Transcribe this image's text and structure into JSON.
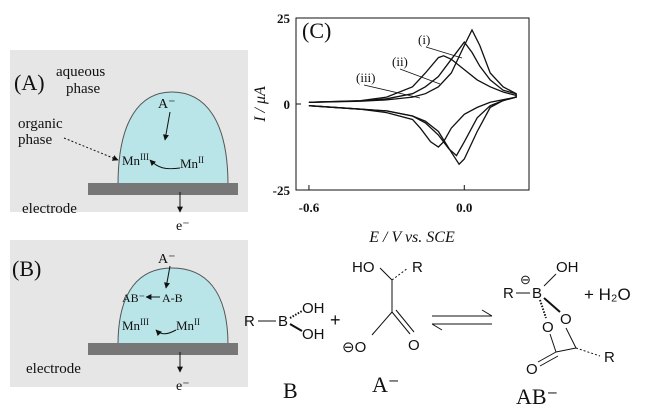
{
  "panel_a": {
    "label": "(A)",
    "aqueous": "aqueous",
    "aqueous_phase": "phase",
    "organic": "organic",
    "organic_phase": "phase",
    "anion": "A⁻",
    "mn_iii": {
      "text": "Mn",
      "sup": "III"
    },
    "mn_ii": {
      "text": "Mn",
      "sup": "II"
    },
    "electrode": "electrode",
    "electron": "e⁻"
  },
  "panel_b": {
    "label": "(B)",
    "anion": "A⁻",
    "complex": "AB⁻",
    "pair": "A-B",
    "mn_iii": {
      "text": "Mn",
      "sup": "III"
    },
    "mn_ii": {
      "text": "Mn",
      "sup": "II"
    },
    "electrode": "electrode",
    "electron": "e⁻"
  },
  "reaction": {
    "boronic": {
      "r": "R",
      "b": "B",
      "oh1": "OH",
      "oh2": "OH"
    },
    "plus": "+",
    "acid": {
      "ho": "HO",
      "r": "R",
      "o_minus": "⊖O",
      "o": "O"
    },
    "complex": {
      "oh": "OH",
      "r1": "R",
      "b": "B",
      "charge": "⊖",
      "o1": "O",
      "o2": "O",
      "o3": "O",
      "r2": "R"
    },
    "water": "+ H₂O",
    "label_b": "B",
    "label_a": "A⁻",
    "label_ab": "AB⁻"
  },
  "chart_data": {
    "type": "line",
    "title": "(C)",
    "x_label": "E / V vs. SCE",
    "y_label": "I / μA",
    "xlim": [
      -0.65,
      0.25
    ],
    "ylim": [
      -25,
      25
    ],
    "xticks": [
      -0.6,
      {
        "value": 0,
        "label": "0.0"
      }
    ],
    "yticks": [
      -25,
      0,
      25
    ],
    "series": [
      {
        "name": "(i)",
        "color": "#111111",
        "x": [
          -0.6,
          -0.4,
          -0.3,
          -0.2,
          -0.15,
          -0.1,
          -0.05,
          0,
          0.03,
          0.06,
          0.1,
          0.15,
          0.2,
          0.2,
          0.15,
          0.1,
          0.05,
          0,
          -0.02,
          -0.05,
          -0.1,
          -0.15,
          -0.2,
          -0.3,
          -0.4,
          -0.6
        ],
        "values": [
          0.5,
          0.8,
          1.2,
          2,
          3,
          5,
          9,
          17,
          21.5,
          17,
          9,
          5,
          3,
          2,
          1,
          -1,
          -8,
          -16,
          -17.5,
          -14,
          -8,
          -5,
          -3.5,
          -2,
          -1.5,
          -0.5
        ]
      },
      {
        "name": "(ii)",
        "color": "#111111",
        "x": [
          -0.6,
          -0.4,
          -0.3,
          -0.2,
          -0.15,
          -0.1,
          -0.05,
          0,
          0.03,
          0.06,
          0.1,
          0.15,
          0.2,
          0.2,
          0.15,
          0.1,
          0.05,
          0,
          -0.03,
          -0.06,
          -0.1,
          -0.15,
          -0.2,
          -0.3,
          -0.4,
          -0.6
        ],
        "values": [
          0.5,
          0.9,
          1.5,
          3,
          5,
          8,
          13,
          18,
          15,
          11,
          7,
          4,
          3,
          2,
          1,
          -0.5,
          -4,
          -11,
          -15,
          -13,
          -9,
          -5.5,
          -3.5,
          -2,
          -1.5,
          -0.5
        ]
      },
      {
        "name": "(iii)",
        "color": "#111111",
        "x": [
          -0.6,
          -0.4,
          -0.3,
          -0.2,
          -0.15,
          -0.1,
          -0.08,
          -0.05,
          0,
          0.05,
          0.1,
          0.15,
          0.2,
          0.2,
          0.1,
          0.05,
          0,
          -0.05,
          -0.08,
          -0.1,
          -0.13,
          -0.17,
          -0.2,
          -0.3,
          -0.4,
          -0.6
        ],
        "values": [
          0.5,
          1,
          2,
          5,
          9,
          13.5,
          14,
          13,
          10,
          7,
          5,
          3.5,
          2.5,
          2,
          0.5,
          -1,
          -3,
          -7,
          -11,
          -12.5,
          -11,
          -7,
          -4.5,
          -2.5,
          -1.5,
          -0.5
        ]
      }
    ]
  }
}
